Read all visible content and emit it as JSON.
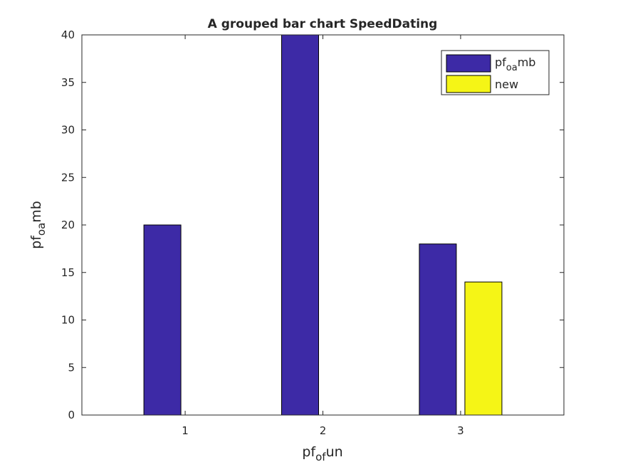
{
  "chart_data": {
    "type": "bar",
    "title": "A grouped bar chart SpeedDating",
    "xlabel": {
      "base": "pf",
      "sub": "of",
      "tail": "un"
    },
    "ylabel": {
      "base": "pf",
      "sub": "oa",
      "tail": "mb"
    },
    "categories": [
      "1",
      "2",
      "3"
    ],
    "ylim": [
      0,
      40
    ],
    "yticks": [
      "0",
      "5",
      "10",
      "15",
      "20",
      "25",
      "30",
      "35",
      "40"
    ],
    "series": [
      {
        "name": {
          "base": "pf",
          "sub": "oa",
          "tail": "mb"
        },
        "color": "#3d2aa6",
        "values": [
          20,
          40,
          18
        ]
      },
      {
        "name": {
          "base": "new",
          "sub": "",
          "tail": ""
        },
        "color": "#f5f516",
        "values": [
          null,
          null,
          14
        ]
      }
    ],
    "legend_position": "top-right",
    "grid": false
  }
}
